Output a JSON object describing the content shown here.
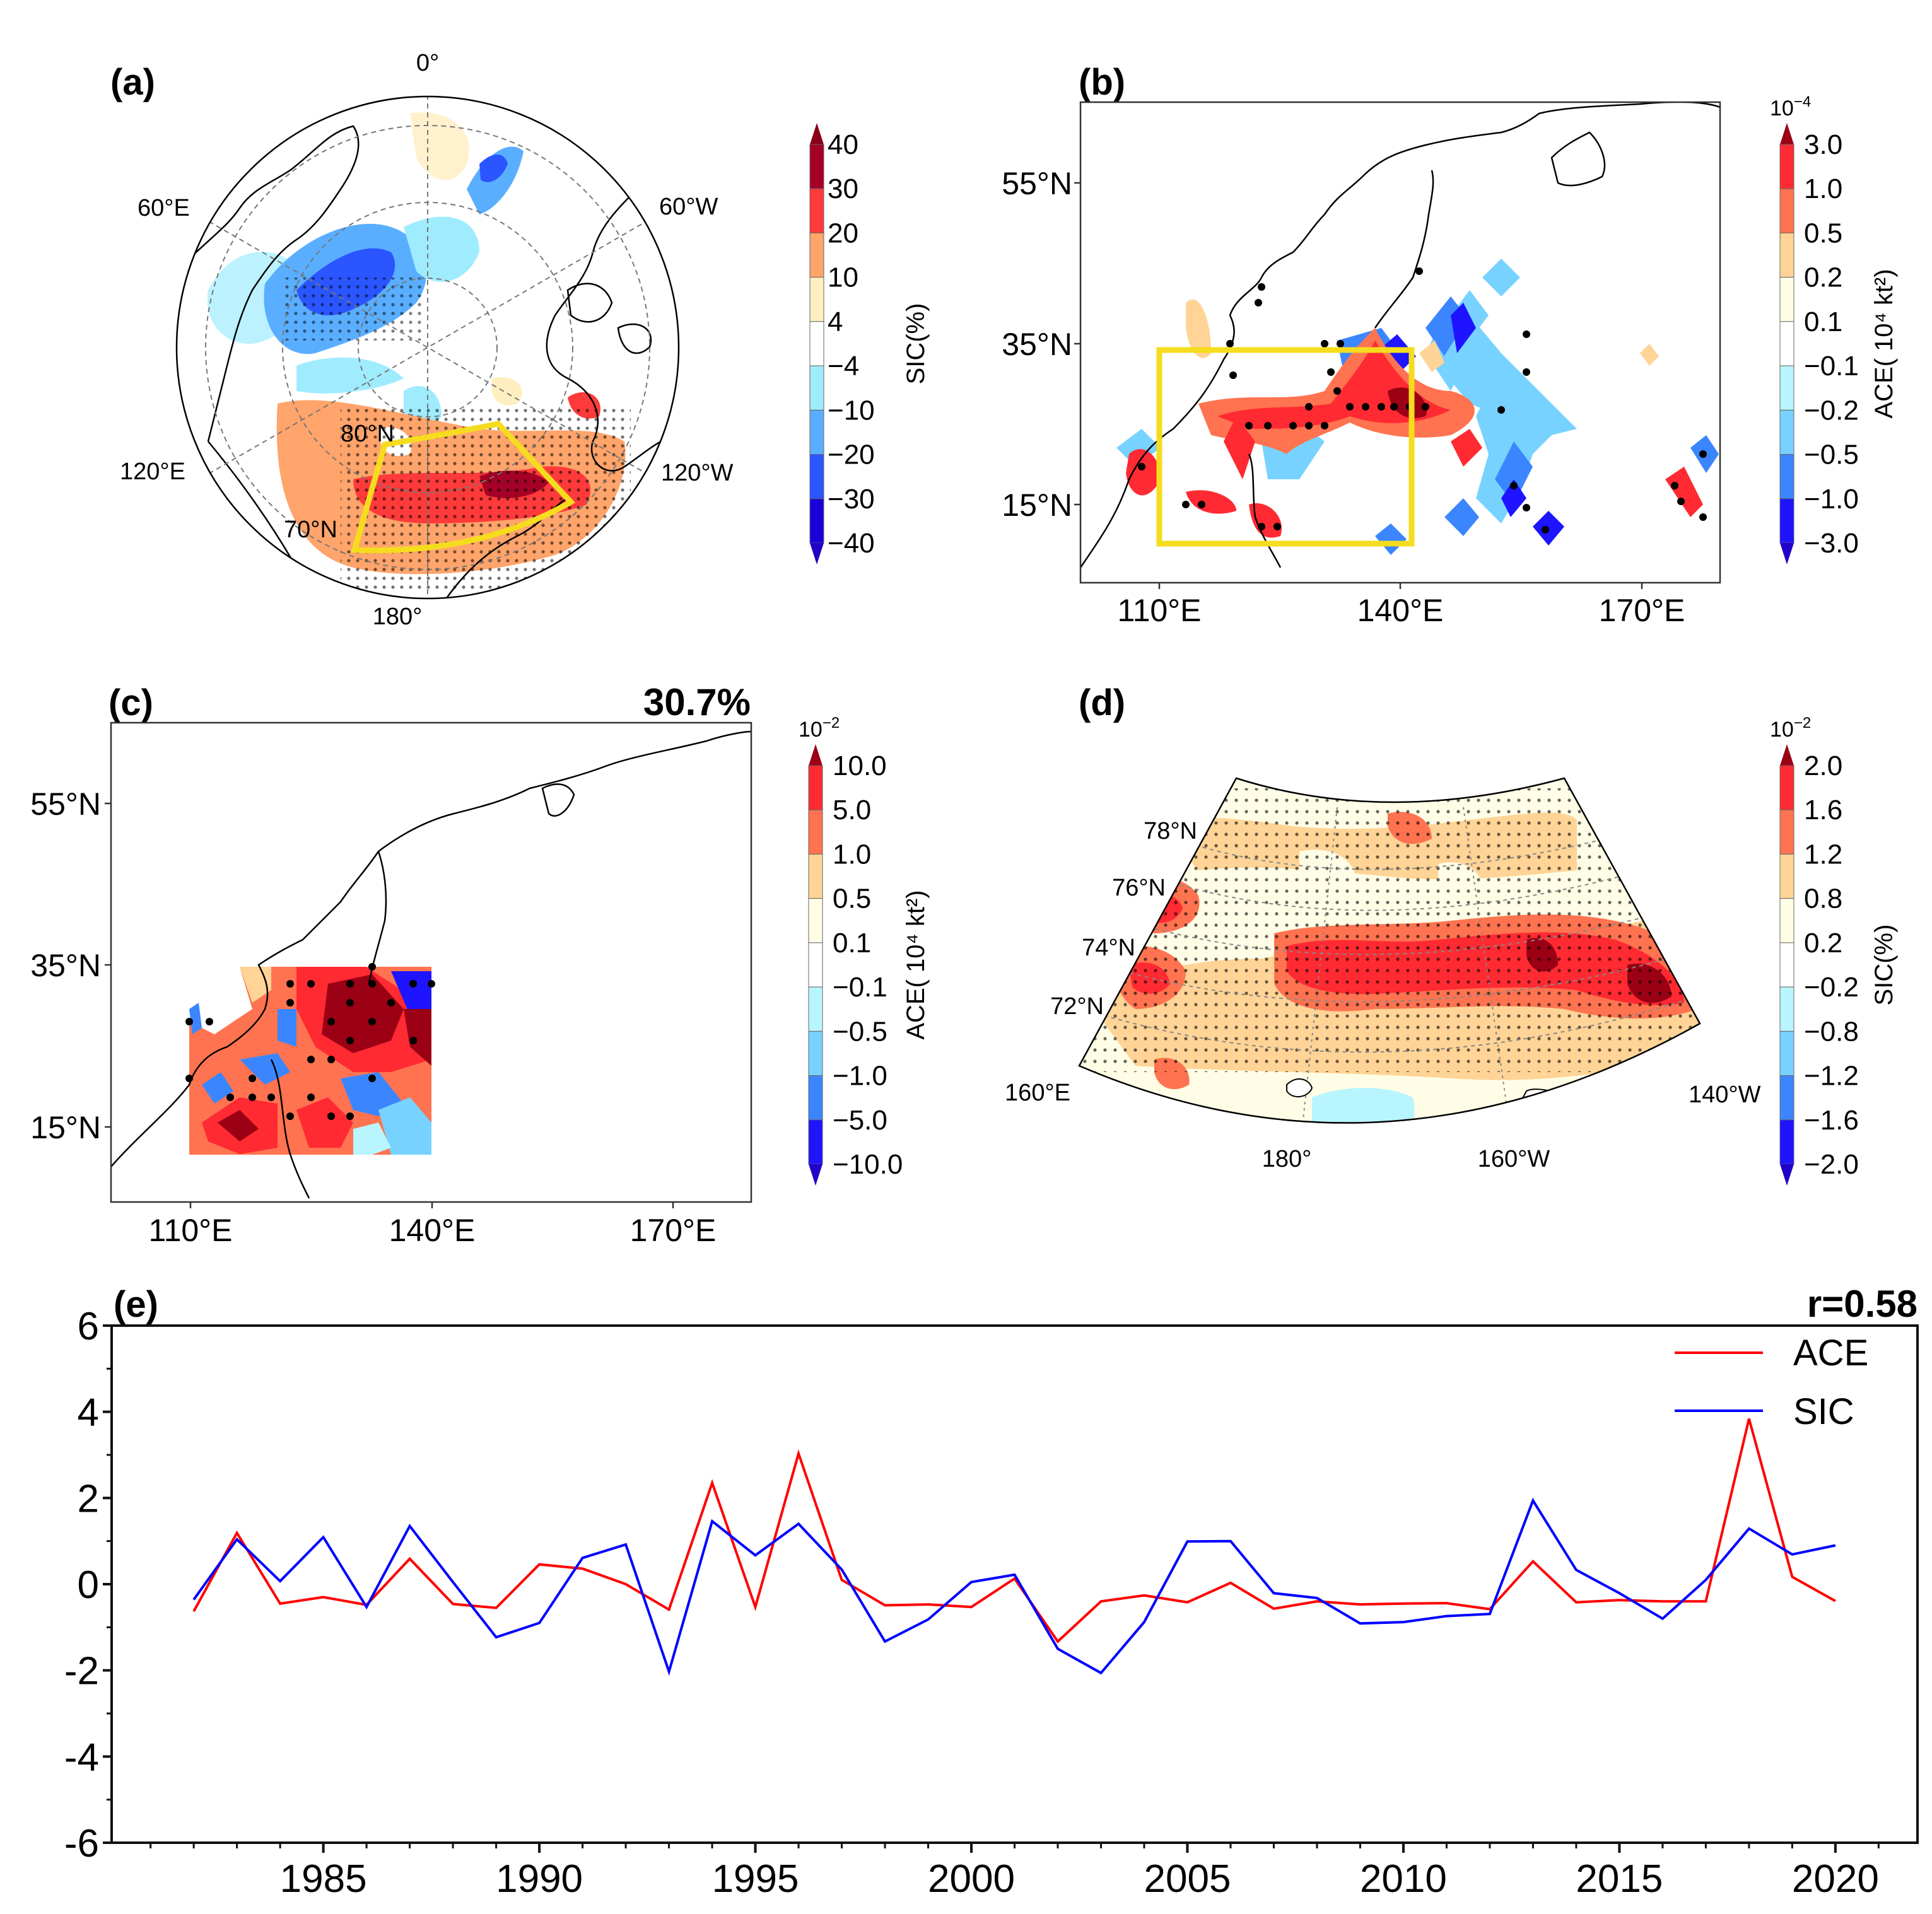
{
  "figure": {
    "panels": {
      "a": {
        "label": "(a)",
        "lon_labels": [
          "0°",
          "60°W",
          "120°W",
          "180°",
          "120°E",
          "60°E"
        ],
        "lat_labels": [
          "80°N",
          "70°N"
        ],
        "colorbar": {
          "title": "SIC(%)",
          "ticks": [
            "40",
            "30",
            "20",
            "10",
            "4",
            "−4",
            "−10",
            "−20",
            "−30",
            "−40"
          ],
          "colors": [
            "#a50026",
            "#ff3a3a",
            "#ffa46b",
            "#ffeec0",
            "#ffffff",
            "#a0ecff",
            "#5aaeff",
            "#2b55ff",
            "#1a00d8"
          ],
          "extend_top": "#8b0018",
          "extend_bottom": "#2200c8"
        },
        "box_color": "#f5dc1e"
      },
      "b": {
        "label": "(b)",
        "lat_labels": [
          "55°N",
          "35°N",
          "15°N"
        ],
        "lon_labels": [
          "110°E",
          "140°E",
          "170°E"
        ],
        "colorbar": {
          "scale": "10",
          "scale_exp": "−4",
          "title": "ACE( 10⁴ kt²)",
          "ticks": [
            "3.0",
            "1.0",
            "0.5",
            "0.2",
            "0.1",
            "−0.1",
            "−0.2",
            "−0.5",
            "−1.0",
            "−3.0"
          ],
          "colors": [
            "#ff2a32",
            "#ff7350",
            "#ffd496",
            "#fffde6",
            "#ffffff",
            "#b9f5ff",
            "#78d2ff",
            "#3b86ff",
            "#1e14ff"
          ],
          "extend_top": "#9b0014",
          "extend_bottom": "#2200c8"
        },
        "box_color": "#f5dc1e"
      },
      "c": {
        "label": "(c)",
        "annotation": "30.7%",
        "lat_labels": [
          "55°N",
          "35°N",
          "15°N"
        ],
        "lon_labels": [
          "110°E",
          "140°E",
          "170°E"
        ],
        "colorbar": {
          "scale": "10",
          "scale_exp": "−2",
          "title": "ACE( 10⁴ kt²)",
          "ticks": [
            "10.0",
            "5.0",
            "1.0",
            "0.5",
            "0.1",
            "−0.1",
            "−0.5",
            "−1.0",
            "−5.0",
            "−10.0"
          ],
          "colors": [
            "#ff2a32",
            "#ff7350",
            "#ffd496",
            "#fffde6",
            "#ffffff",
            "#b9f5ff",
            "#78d2ff",
            "#3b86ff",
            "#1e14ff"
          ],
          "extend_top": "#9b0014",
          "extend_bottom": "#2200c8"
        }
      },
      "d": {
        "label": "(d)",
        "lat_labels": [
          "78°N",
          "76°N",
          "74°N",
          "72°N"
        ],
        "lon_labels": [
          "160°E",
          "180°",
          "160°W",
          "140°W"
        ],
        "colorbar": {
          "scale": "10",
          "scale_exp": "−2",
          "title": "SIC(%)",
          "ticks": [
            "2.0",
            "1.6",
            "1.2",
            "0.8",
            "0.2",
            "−0.2",
            "−0.8",
            "−1.2",
            "−1.6",
            "−2.0"
          ],
          "colors": [
            "#ff2a32",
            "#ff7350",
            "#ffd496",
            "#fffde6",
            "#ffffff",
            "#b9f5ff",
            "#78d2ff",
            "#3b86ff",
            "#1e14ff"
          ],
          "extend_top": "#9b0014",
          "extend_bottom": "#2200c8"
        }
      }
    }
  },
  "chart_data": {
    "type": "line",
    "panel_label": "(e)",
    "annotation": "r=0.58",
    "title": "",
    "xlabel": "",
    "ylabel": "",
    "x": [
      1982,
      1983,
      1984,
      1985,
      1986,
      1987,
      1988,
      1989,
      1990,
      1991,
      1992,
      1993,
      1994,
      1995,
      1996,
      1997,
      1998,
      1999,
      2000,
      2001,
      2002,
      2003,
      2004,
      2005,
      2006,
      2007,
      2008,
      2009,
      2010,
      2011,
      2012,
      2013,
      2014,
      2015,
      2016,
      2017,
      2018,
      2019,
      2020
    ],
    "series": [
      {
        "name": "ACE",
        "color": "#ff0000",
        "values": [
          -0.63,
          1.19,
          -0.45,
          -0.3,
          -0.48,
          0.59,
          -0.46,
          -0.55,
          0.46,
          0.36,
          0.0,
          -0.59,
          2.35,
          -0.53,
          3.03,
          0.1,
          -0.49,
          -0.47,
          -0.53,
          0.13,
          -1.33,
          -0.4,
          -0.26,
          -0.42,
          0.03,
          -0.57,
          -0.4,
          -0.47,
          -0.45,
          -0.44,
          -0.58,
          0.53,
          -0.42,
          -0.37,
          -0.4,
          -0.4,
          3.84,
          0.17,
          -0.39
        ]
      },
      {
        "name": "SIC",
        "color": "#0000ff",
        "values": [
          -0.36,
          1.04,
          0.07,
          1.09,
          -0.53,
          1.35,
          0.05,
          -1.23,
          -0.9,
          0.61,
          0.92,
          -2.03,
          1.46,
          0.67,
          1.4,
          0.34,
          -1.33,
          -0.82,
          0.05,
          0.22,
          -1.5,
          -2.06,
          -0.88,
          0.99,
          1.0,
          -0.21,
          -0.32,
          -0.91,
          -0.88,
          -0.74,
          -0.69,
          1.94,
          0.33,
          -0.21,
          -0.8,
          0.1,
          1.29,
          0.69,
          0.9
        ]
      }
    ],
    "xticks": [
      1985,
      1990,
      1995,
      2000,
      2005,
      2010,
      2015,
      2020
    ],
    "xtick_labels": [
      "1985",
      "1990",
      "1995",
      "2000",
      "2005",
      "2010",
      "2015",
      "2020"
    ],
    "yticks": [
      6,
      4,
      2,
      0,
      -2,
      -4,
      -6
    ],
    "ytick_labels": [
      "6",
      "4",
      "2",
      "0",
      "-2",
      "-4",
      "-6"
    ],
    "xlim": [
      1980.1,
      2021.9
    ],
    "ylim": [
      -6,
      6
    ],
    "grid": false,
    "legend": {
      "position": "top-right",
      "entries": [
        "ACE",
        "SIC"
      ]
    }
  }
}
